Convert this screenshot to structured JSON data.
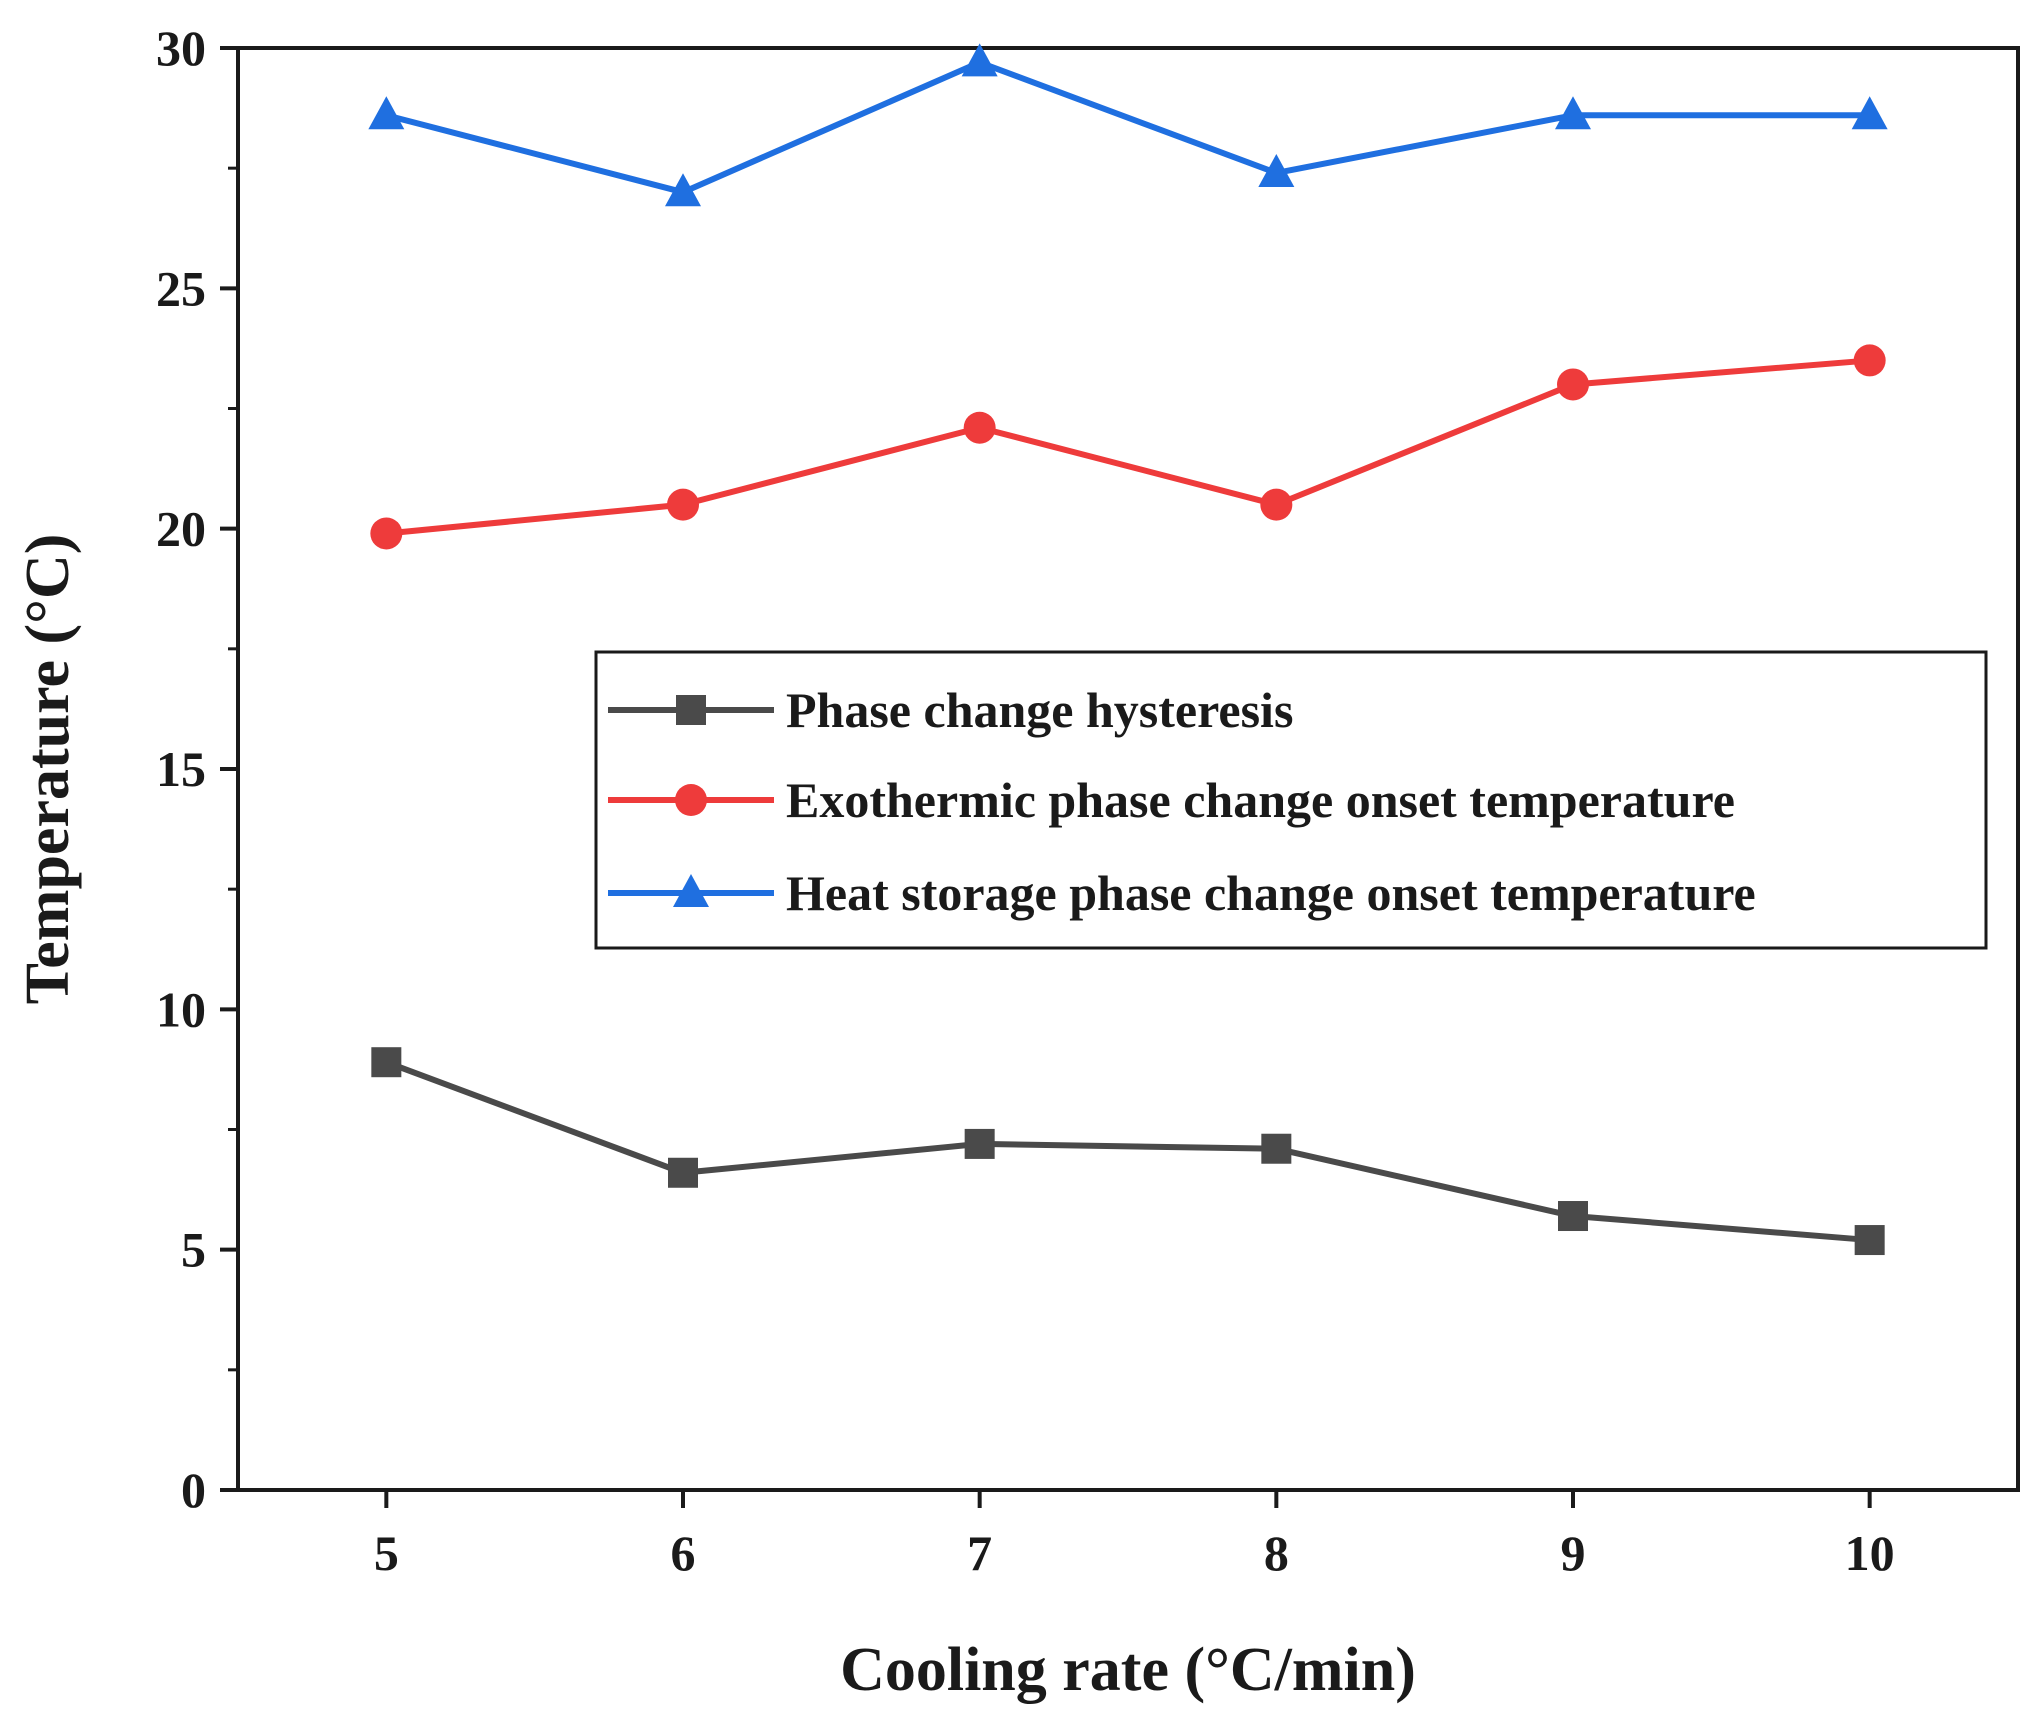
{
  "chart_data": {
    "type": "line",
    "title": "",
    "xlabel": "Cooling rate (°C/min)",
    "ylabel": "Temperature (°C)",
    "x": [
      5,
      6,
      7,
      8,
      9,
      10
    ],
    "x_tick_labels": [
      "5",
      "6",
      "7",
      "8",
      "9",
      "10"
    ],
    "xlim": [
      4.5,
      10.5
    ],
    "ylim": [
      0,
      30
    ],
    "y_ticks": [
      0,
      5,
      10,
      15,
      20,
      25,
      30
    ],
    "y_tick_labels": [
      "0",
      "5",
      "10",
      "15",
      "20",
      "25",
      "30"
    ],
    "grid": false,
    "legend_position": "center-right",
    "series": [
      {
        "name": "Phase change hysteresis",
        "color": "#4a4a4a",
        "marker": "square",
        "values": [
          8.9,
          6.6,
          7.2,
          7.1,
          5.7,
          5.2
        ]
      },
      {
        "name": "Exothermic phase change onset temperature",
        "color": "#ee3b3b",
        "marker": "circle",
        "values": [
          19.9,
          20.5,
          22.1,
          20.5,
          23.0,
          23.5
        ]
      },
      {
        "name": "Heat storage phase change onset temperature",
        "color": "#1f6fe0",
        "marker": "triangle",
        "values": [
          28.6,
          27.0,
          29.7,
          27.4,
          28.6,
          28.6
        ]
      }
    ]
  }
}
